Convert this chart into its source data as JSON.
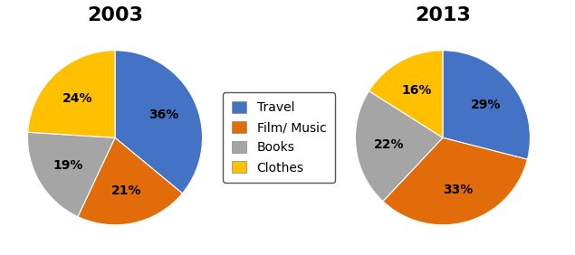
{
  "title_2003": "2003",
  "title_2013": "2013",
  "labels": [
    "Travel",
    "Film/ Music",
    "Books",
    "Clothes"
  ],
  "values_2003": [
    36,
    21,
    19,
    24
  ],
  "values_2013": [
    29,
    33,
    22,
    16
  ],
  "colors": [
    "#4472C4",
    "#E36C0A",
    "#A5A5A5",
    "#FFC000"
  ],
  "pct_labels_2003": [
    "36%",
    "21%",
    "19%",
    "24%"
  ],
  "pct_labels_2013": [
    "29%",
    "33%",
    "22%",
    "16%"
  ],
  "background_color": "#ffffff",
  "title_fontsize": 16,
  "label_fontsize": 10,
  "legend_fontsize": 10
}
